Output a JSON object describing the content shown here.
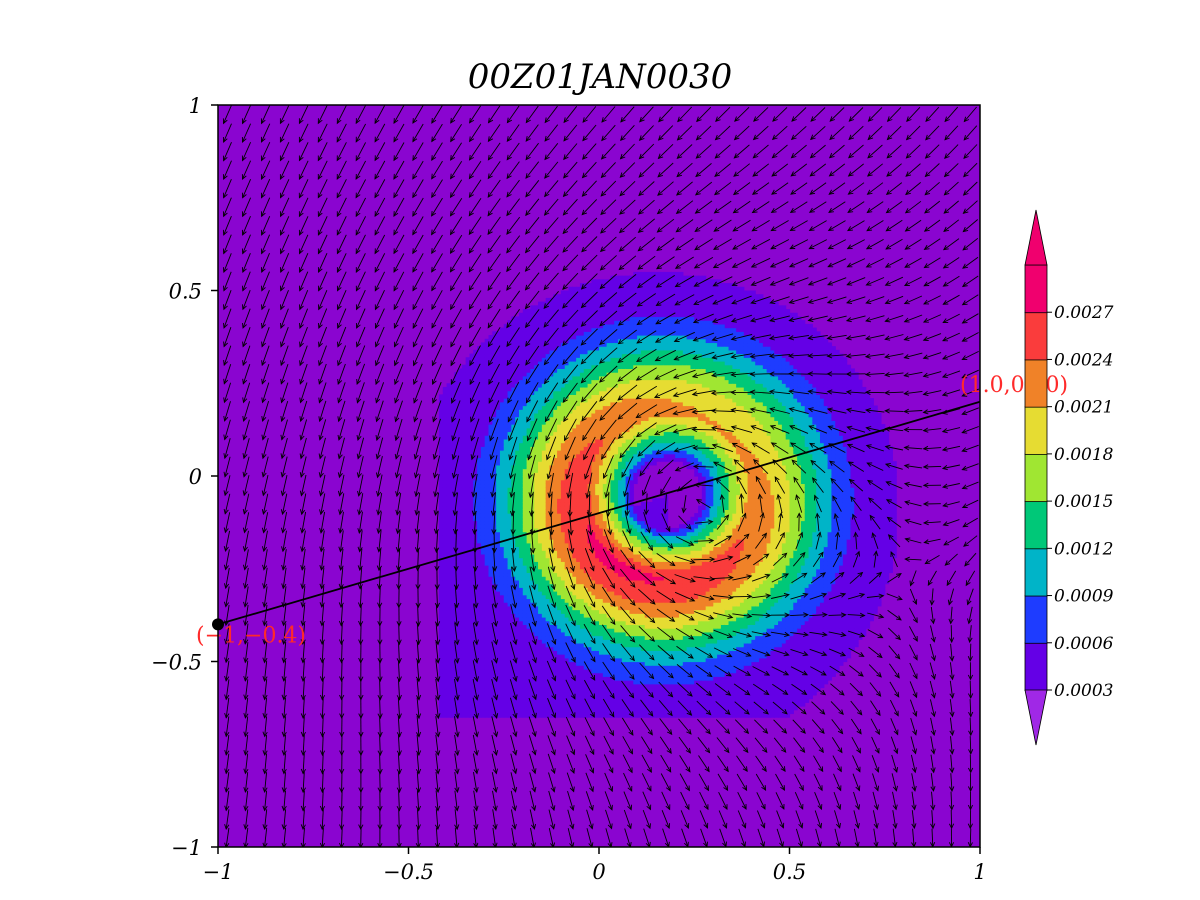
{
  "chart_data": {
    "type": "heatmap",
    "title": "00Z01JAN0030",
    "xlim": [
      -1,
      1
    ],
    "ylim": [
      -1,
      1
    ],
    "x_ticks": [
      {
        "value": -1,
        "label": "−1"
      },
      {
        "value": -0.5,
        "label": "−0.5"
      },
      {
        "value": 0,
        "label": "0"
      },
      {
        "value": 0.5,
        "label": "0.5"
      },
      {
        "value": 1,
        "label": "1"
      }
    ],
    "y_ticks": [
      {
        "value": -1,
        "label": "−1"
      },
      {
        "value": -0.5,
        "label": "−0.5"
      },
      {
        "value": 0,
        "label": "0"
      },
      {
        "value": 0.5,
        "label": "0.5"
      },
      {
        "value": 1,
        "label": "1"
      }
    ],
    "field": {
      "center": [
        0.18,
        -0.05
      ],
      "ring_peak_radius": 0.22,
      "eye_radius": 0.09,
      "background_level": 0.0003,
      "peak_value": 0.0027
    },
    "vectors": {
      "field": "cyclonic vortex with northeasterly background flow",
      "center": [
        0.18,
        -0.05
      ],
      "grid_step": 0.05
    },
    "colorbar": {
      "levels": [
        "0.0003",
        "0.0006",
        "0.0009",
        "0.0012",
        "0.0015",
        "0.0018",
        "0.0021",
        "0.0024",
        "0.0027"
      ],
      "colors": [
        "#8a05d0",
        "#6400e6",
        "#1e3cff",
        "#00b4c8",
        "#00c878",
        "#a0e632",
        "#e6dc32",
        "#f08228",
        "#fa3c3c",
        "#f0006e"
      ],
      "under_color": "#a028e6",
      "over_color": "#f0006e"
    },
    "cross_section": {
      "start": [
        -1,
        -0.4
      ],
      "end": [
        1.0,
        0.2
      ],
      "start_label": "(−1,−0.4)",
      "end_label": "(1.0,0.20)",
      "line_color": "#000000",
      "label_color": "#ff2a2a"
    }
  }
}
